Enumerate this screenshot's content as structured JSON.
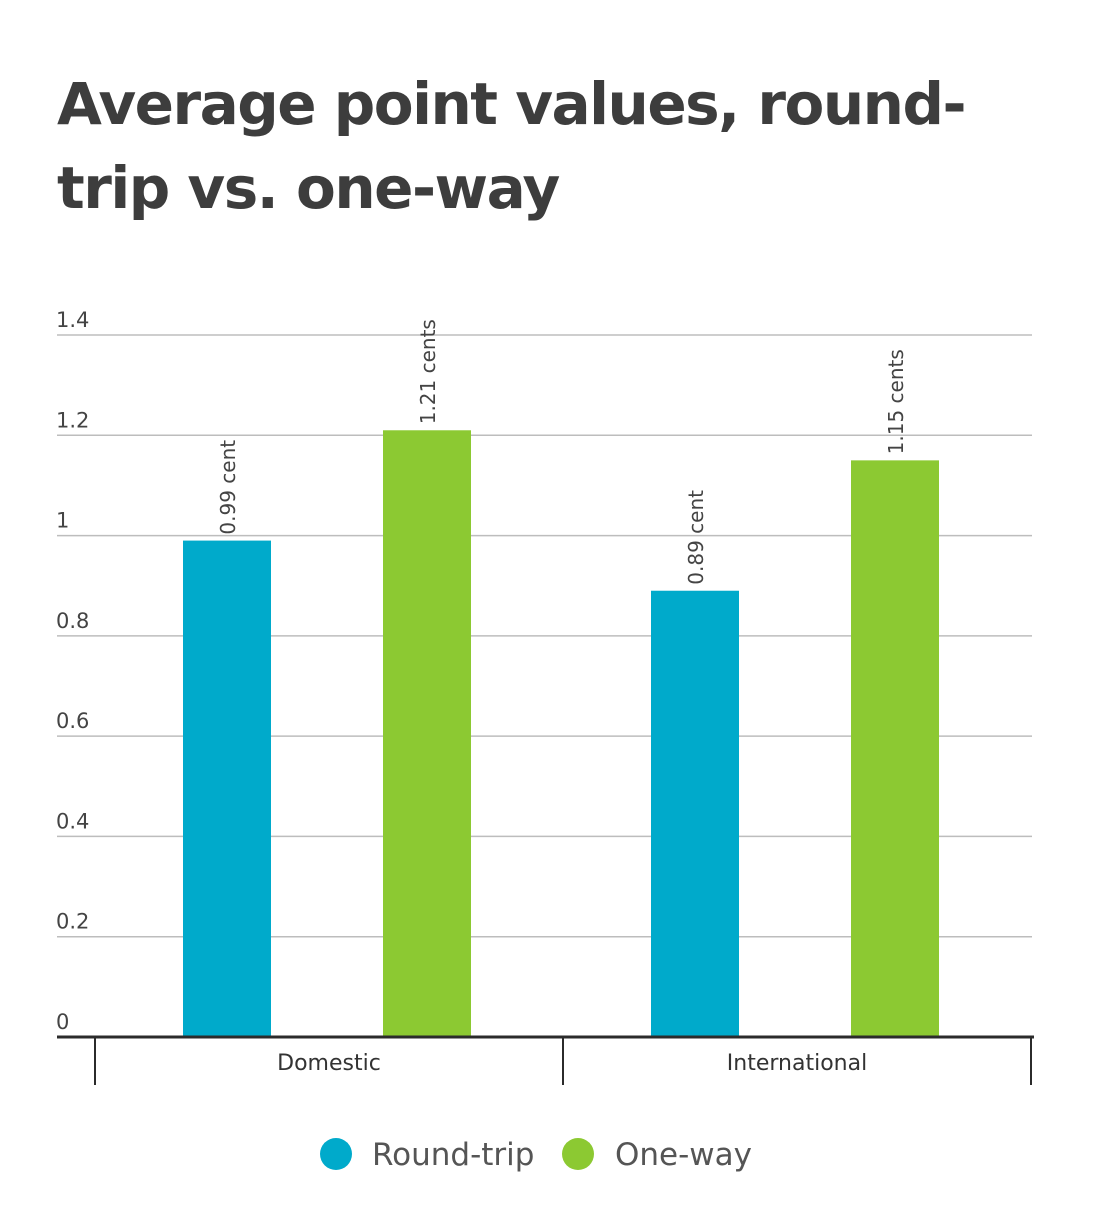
{
  "chart_data": {
    "type": "bar",
    "title": "Average point values, round-trip vs. one-way",
    "categories": [
      "Domestic",
      "International"
    ],
    "series": [
      {
        "name": "Round-trip",
        "color": "#00AACB",
        "values": [
          0.99,
          0.89
        ],
        "labels": [
          "0.99 cent",
          "0.89 cent"
        ]
      },
      {
        "name": "One-way",
        "color": "#8CC932",
        "values": [
          1.21,
          1.15
        ],
        "labels": [
          "1.21 cents",
          "1.15 cents"
        ]
      }
    ],
    "yticks": [
      "0",
      "0.2",
      "0.4",
      "0.6",
      "0.8",
      "1",
      "1.2",
      "1.4"
    ],
    "ylim": [
      0,
      1.4
    ],
    "xlabel": "",
    "ylabel": "",
    "grid": true,
    "legend_position": "bottom-center"
  }
}
